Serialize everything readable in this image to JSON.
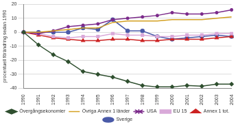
{
  "chart_data": {
    "type": "line",
    "y_label": "procentuell förändring sedan 1990",
    "categories": [
      "1990",
      "1991",
      "1992",
      "1993",
      "1994",
      "1995",
      "1996",
      "1997",
      "1998",
      "1999",
      "2000",
      "2001",
      "2002",
      "2003",
      "2004"
    ],
    "ylim": [
      -40,
      20
    ],
    "yticks": [
      -40,
      -30,
      -20,
      -10,
      0,
      10,
      20
    ],
    "grid": true,
    "legend": "bottom",
    "series": [
      {
        "name": "Övergångsekonomier",
        "color": "#2f4f2f",
        "marker": "diamond",
        "values": [
          0,
          -9,
          -16,
          -21,
          -28,
          -30,
          -32,
          -35,
          -38,
          -39,
          -39,
          -38,
          -38.5,
          -37,
          -37
        ]
      },
      {
        "name": "Övriga Annex 1 länder",
        "color": "#d4a020",
        "marker": "none",
        "values": [
          0,
          0,
          1,
          2,
          3,
          3,
          7,
          8,
          8,
          8,
          9,
          9,
          9,
          10,
          11
        ]
      },
      {
        "name": "USA",
        "color": "#7b2a8a",
        "marker": "star",
        "values": [
          0,
          -1,
          1,
          4,
          5,
          6,
          9,
          10,
          11,
          12,
          14,
          13,
          13,
          14,
          16
        ]
      },
      {
        "name": "EU 15",
        "color": "#d9a9d9",
        "marker": "square",
        "values": [
          0,
          -1,
          -3,
          -4,
          -3,
          -3,
          -1,
          -2,
          -2,
          -3,
          -3,
          -2,
          -2,
          -1,
          -1
        ]
      },
      {
        "name": "Annex 1 tot.",
        "color": "#cc2222",
        "marker": "triangle",
        "values": [
          0,
          -2,
          -4,
          -5,
          -6,
          -6,
          -5,
          -5,
          -6,
          -6,
          -5,
          -5,
          -5,
          -4,
          -3
        ]
      },
      {
        "name": "Sverige",
        "color": "#4a5aa8",
        "marker": "circle",
        "values": [
          0,
          0,
          0,
          0,
          3,
          2,
          9,
          1,
          1,
          -3,
          -5,
          -4,
          -3,
          -2,
          -3
        ]
      }
    ]
  }
}
